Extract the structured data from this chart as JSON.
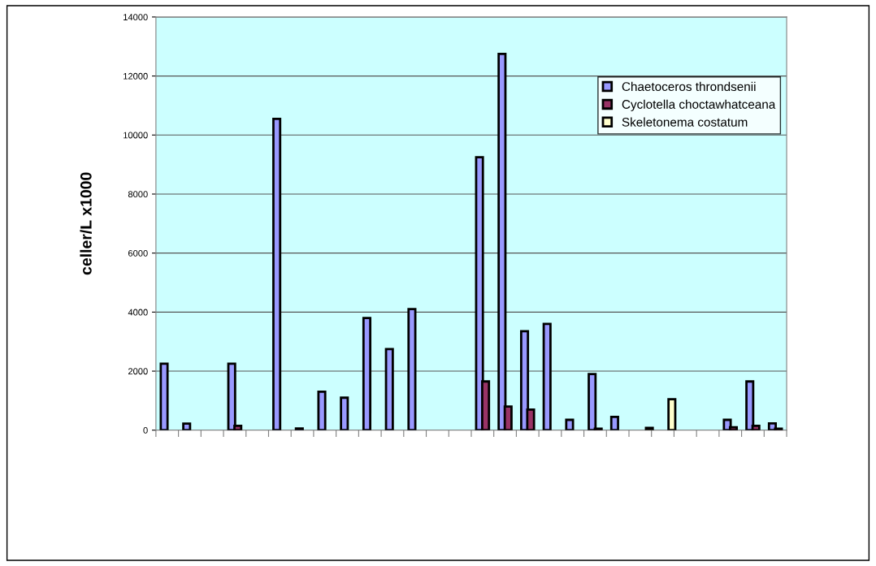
{
  "chart_data": {
    "type": "bar",
    "ylabel": "celler/L x1000",
    "categories": [
      null,
      null,
      null,
      null,
      null,
      null,
      null,
      null,
      null,
      null,
      null,
      null,
      null,
      null,
      null,
      null,
      null,
      null,
      null,
      null,
      null,
      null,
      null,
      null,
      null,
      null,
      null,
      null
    ],
    "series": [
      {
        "name": "Chaetoceros throndsenii",
        "color": "#9999ff",
        "values": [
          2250,
          220,
          null,
          2250,
          null,
          10550,
          60,
          1300,
          1100,
          3800,
          2750,
          4100,
          null,
          null,
          9250,
          12750,
          3350,
          3600,
          350,
          1900,
          450,
          null,
          null,
          null,
          null,
          350,
          1650,
          230
        ]
      },
      {
        "name": "Cyclotella choctawhatceana",
        "color": "#993366",
        "values": [
          null,
          null,
          null,
          150,
          null,
          null,
          null,
          null,
          null,
          null,
          null,
          null,
          null,
          null,
          1650,
          800,
          700,
          null,
          null,
          50,
          null,
          null,
          null,
          null,
          null,
          100,
          150,
          50
        ]
      },
      {
        "name": "Skeletonema costatum",
        "color": "#ffffcc",
        "values": [
          null,
          null,
          null,
          null,
          null,
          null,
          null,
          null,
          null,
          null,
          null,
          null,
          null,
          null,
          null,
          null,
          null,
          null,
          null,
          null,
          null,
          80,
          1050,
          null,
          null,
          null,
          null,
          null
        ]
      }
    ],
    "ylim": [
      0,
      14000
    ],
    "yticks": [
      0,
      2000,
      4000,
      6000,
      8000,
      10000,
      12000,
      14000
    ],
    "grid": "y",
    "legend": "top right"
  }
}
